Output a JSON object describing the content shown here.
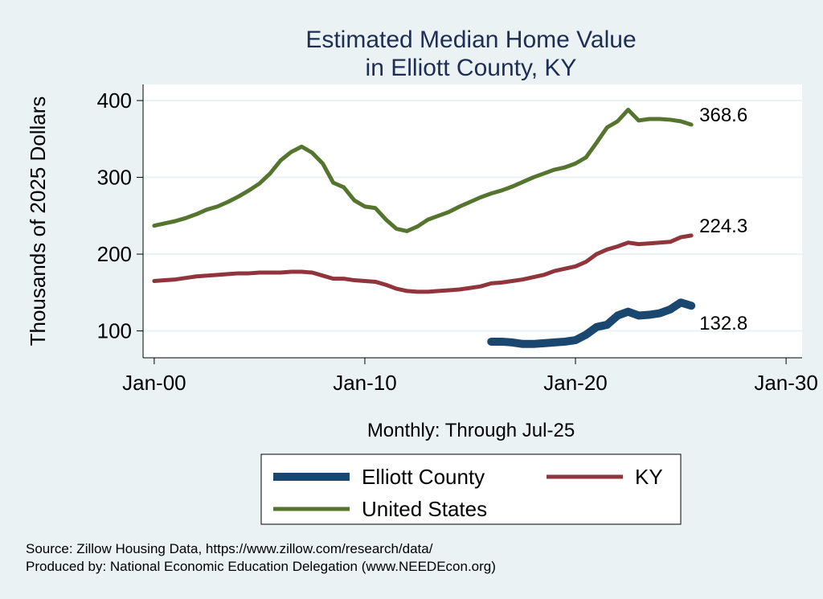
{
  "chart_data": {
    "type": "line",
    "title": [
      "Estimated Median Home Value",
      "in Elliott County, KY"
    ],
    "x_label": "Monthly: Through Jul-25",
    "y_label": "Thousands of 2025 Dollars",
    "source": [
      "Source: Zillow Housing Data, https://www.zillow.com/research/data/",
      "Produced by: National Economic Education Delegation (www.NEEDEcon.org)"
    ],
    "x": [
      2000,
      2000.5,
      2001,
      2001.5,
      2002,
      2002.5,
      2003,
      2003.5,
      2004,
      2004.5,
      2005,
      2005.5,
      2006,
      2006.5,
      2007,
      2007.5,
      2008,
      2008.5,
      2009,
      2009.5,
      2010,
      2010.5,
      2011,
      2011.5,
      2012,
      2012.5,
      2013,
      2013.5,
      2014,
      2014.5,
      2015,
      2015.5,
      2016,
      2016.5,
      2017,
      2017.5,
      2018,
      2018.5,
      2019,
      2019.5,
      2020,
      2020.5,
      2021,
      2021.5,
      2022,
      2022.5,
      2023,
      2023.5,
      2024,
      2024.5,
      2025,
      2025.5
    ],
    "series": [
      {
        "name": "Elliott County",
        "color": "#1a476f",
        "width": 10,
        "values": [
          null,
          null,
          null,
          null,
          null,
          null,
          null,
          null,
          null,
          null,
          null,
          null,
          null,
          null,
          null,
          null,
          null,
          null,
          null,
          null,
          null,
          null,
          null,
          null,
          null,
          null,
          null,
          null,
          null,
          null,
          null,
          null,
          86,
          86,
          85,
          83,
          83,
          84,
          85,
          86,
          88,
          95,
          105,
          108,
          120,
          125,
          120,
          121,
          123,
          128,
          137,
          132.8
        ]
      },
      {
        "name": "KY",
        "color": "#90353b",
        "width": 5,
        "values": [
          165,
          166,
          167,
          169,
          171,
          172,
          173,
          174,
          175,
          175,
          176,
          176,
          176,
          177,
          177,
          176,
          172,
          168,
          168,
          166,
          165,
          164,
          160,
          155,
          152,
          151,
          151,
          152,
          153,
          154,
          156,
          158,
          162,
          163,
          165,
          167,
          170,
          173,
          178,
          181,
          184,
          190,
          200,
          206,
          210,
          215,
          213,
          214,
          215,
          216,
          222,
          224.3
        ]
      },
      {
        "name": "United States",
        "color": "#55752f",
        "width": 5,
        "values": [
          237,
          240,
          243,
          247,
          252,
          258,
          262,
          268,
          275,
          283,
          292,
          305,
          322,
          333,
          340,
          332,
          318,
          293,
          287,
          270,
          262,
          260,
          245,
          233,
          230,
          236,
          245,
          250,
          255,
          262,
          268,
          274,
          279,
          283,
          288,
          294,
          300,
          305,
          310,
          313,
          318,
          326,
          345,
          365,
          373,
          388,
          374,
          376,
          376,
          375,
          373,
          368.6
        ]
      }
    ],
    "xlim": [
      1999.47,
      2030.76
    ],
    "xticks": [
      {
        "value": 2000,
        "label": "Jan-00"
      },
      {
        "value": 2010,
        "label": "Jan-10"
      },
      {
        "value": 2020,
        "label": "Jan-20"
      },
      {
        "value": 2030,
        "label": "Jan-30"
      }
    ],
    "ylim": [
      65,
      421
    ],
    "yticks": [
      100,
      200,
      300,
      400
    ],
    "grid": true
  }
}
